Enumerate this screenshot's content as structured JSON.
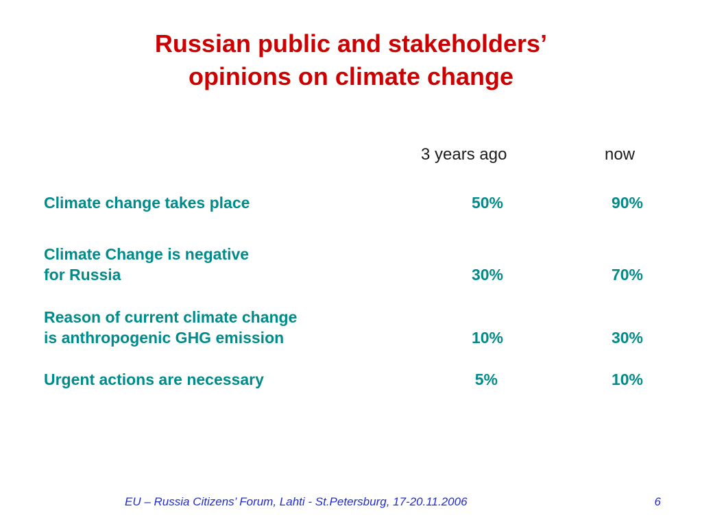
{
  "title": {
    "line1": "Russian public and stakeholders’",
    "line2": "opinions on climate change"
  },
  "columns": {
    "three_years_ago": "3 years ago",
    "now": "now"
  },
  "rows": [
    {
      "label_line1": "Climate change takes place",
      "label_line2": "",
      "three_years_ago": "50%",
      "now": "90%"
    },
    {
      "label_line1": "Climate Change is negative",
      "label_line2": "for Russia",
      "three_years_ago": "30%",
      "now": "70%"
    },
    {
      "label_line1": "Reason of current climate change",
      "label_line2": "is anthropogenic GHG emission",
      "three_years_ago": "10%",
      "now": "30%"
    },
    {
      "label_line1": "Urgent actions are necessary",
      "label_line2": "",
      "three_years_ago": "5%",
      "now": "10%"
    }
  ],
  "footer": {
    "text": "EU – Russia Citizens’ Forum, Lahti  - St.Petersburg, 17-20.11.2006",
    "page_number": "6"
  },
  "colors": {
    "title": "#cc0000",
    "row_text": "#008b8b",
    "header_text": "#1a1a1a",
    "footer_text": "#1f2bd6"
  }
}
